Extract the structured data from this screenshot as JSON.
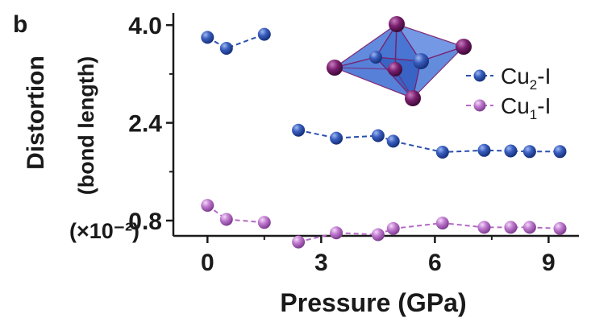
{
  "panel_label": "b",
  "chart_data": {
    "type": "scatter",
    "title": "",
    "xlabel": "Pressure (GPa)",
    "ylabel_line1": "Distortion",
    "ylabel_line2": "(bond length)",
    "y_unit": "(×10⁻²)",
    "xlim": [
      -0.9,
      9.8
    ],
    "ylim": [
      0.55,
      4.2
    ],
    "x_ticks": [
      0,
      3,
      6,
      9
    ],
    "x_tick_labels": [
      "0",
      "3",
      "6",
      "9"
    ],
    "y_ticks": [
      0.8,
      2.4,
      4.0
    ],
    "y_tick_labels": [
      "0.8",
      "2.4",
      "4.0"
    ],
    "legend_position": "top-right",
    "series": [
      {
        "name_main": "Cu",
        "name_sub": "2",
        "name_suffix": "-I",
        "color": "#2b4fae",
        "segments": [
          {
            "x": [
              0,
              0.5,
              1.5
            ],
            "y": [
              3.8,
              3.62,
              3.85
            ]
          },
          {
            "x": [
              2.4,
              3.4,
              4.5,
              4.9,
              6.2,
              7.3,
              8.0,
              8.5,
              9.3
            ],
            "y": [
              2.28,
              2.15,
              2.19,
              2.1,
              1.92,
              1.95,
              1.94,
              1.93,
              1.93
            ]
          }
        ]
      },
      {
        "name_main": "Cu",
        "name_sub": "1",
        "name_suffix": "-I",
        "color": "#b36ac4",
        "segments": [
          {
            "x": [
              0,
              0.5,
              1.5
            ],
            "y": [
              1.05,
              0.82,
              0.77
            ]
          },
          {
            "x": [
              2.4,
              3.4,
              4.5,
              4.9,
              6.2,
              7.3,
              8.0,
              8.5,
              9.3
            ],
            "y": [
              0.45,
              0.6,
              0.57,
              0.67,
              0.76,
              0.69,
              0.69,
              0.69,
              0.67
            ]
          }
        ]
      }
    ],
    "inset": {
      "description_icon": "polyhedron-inset",
      "face_color": "#3f6fd0",
      "atom_color": "#7a1f6e"
    }
  }
}
